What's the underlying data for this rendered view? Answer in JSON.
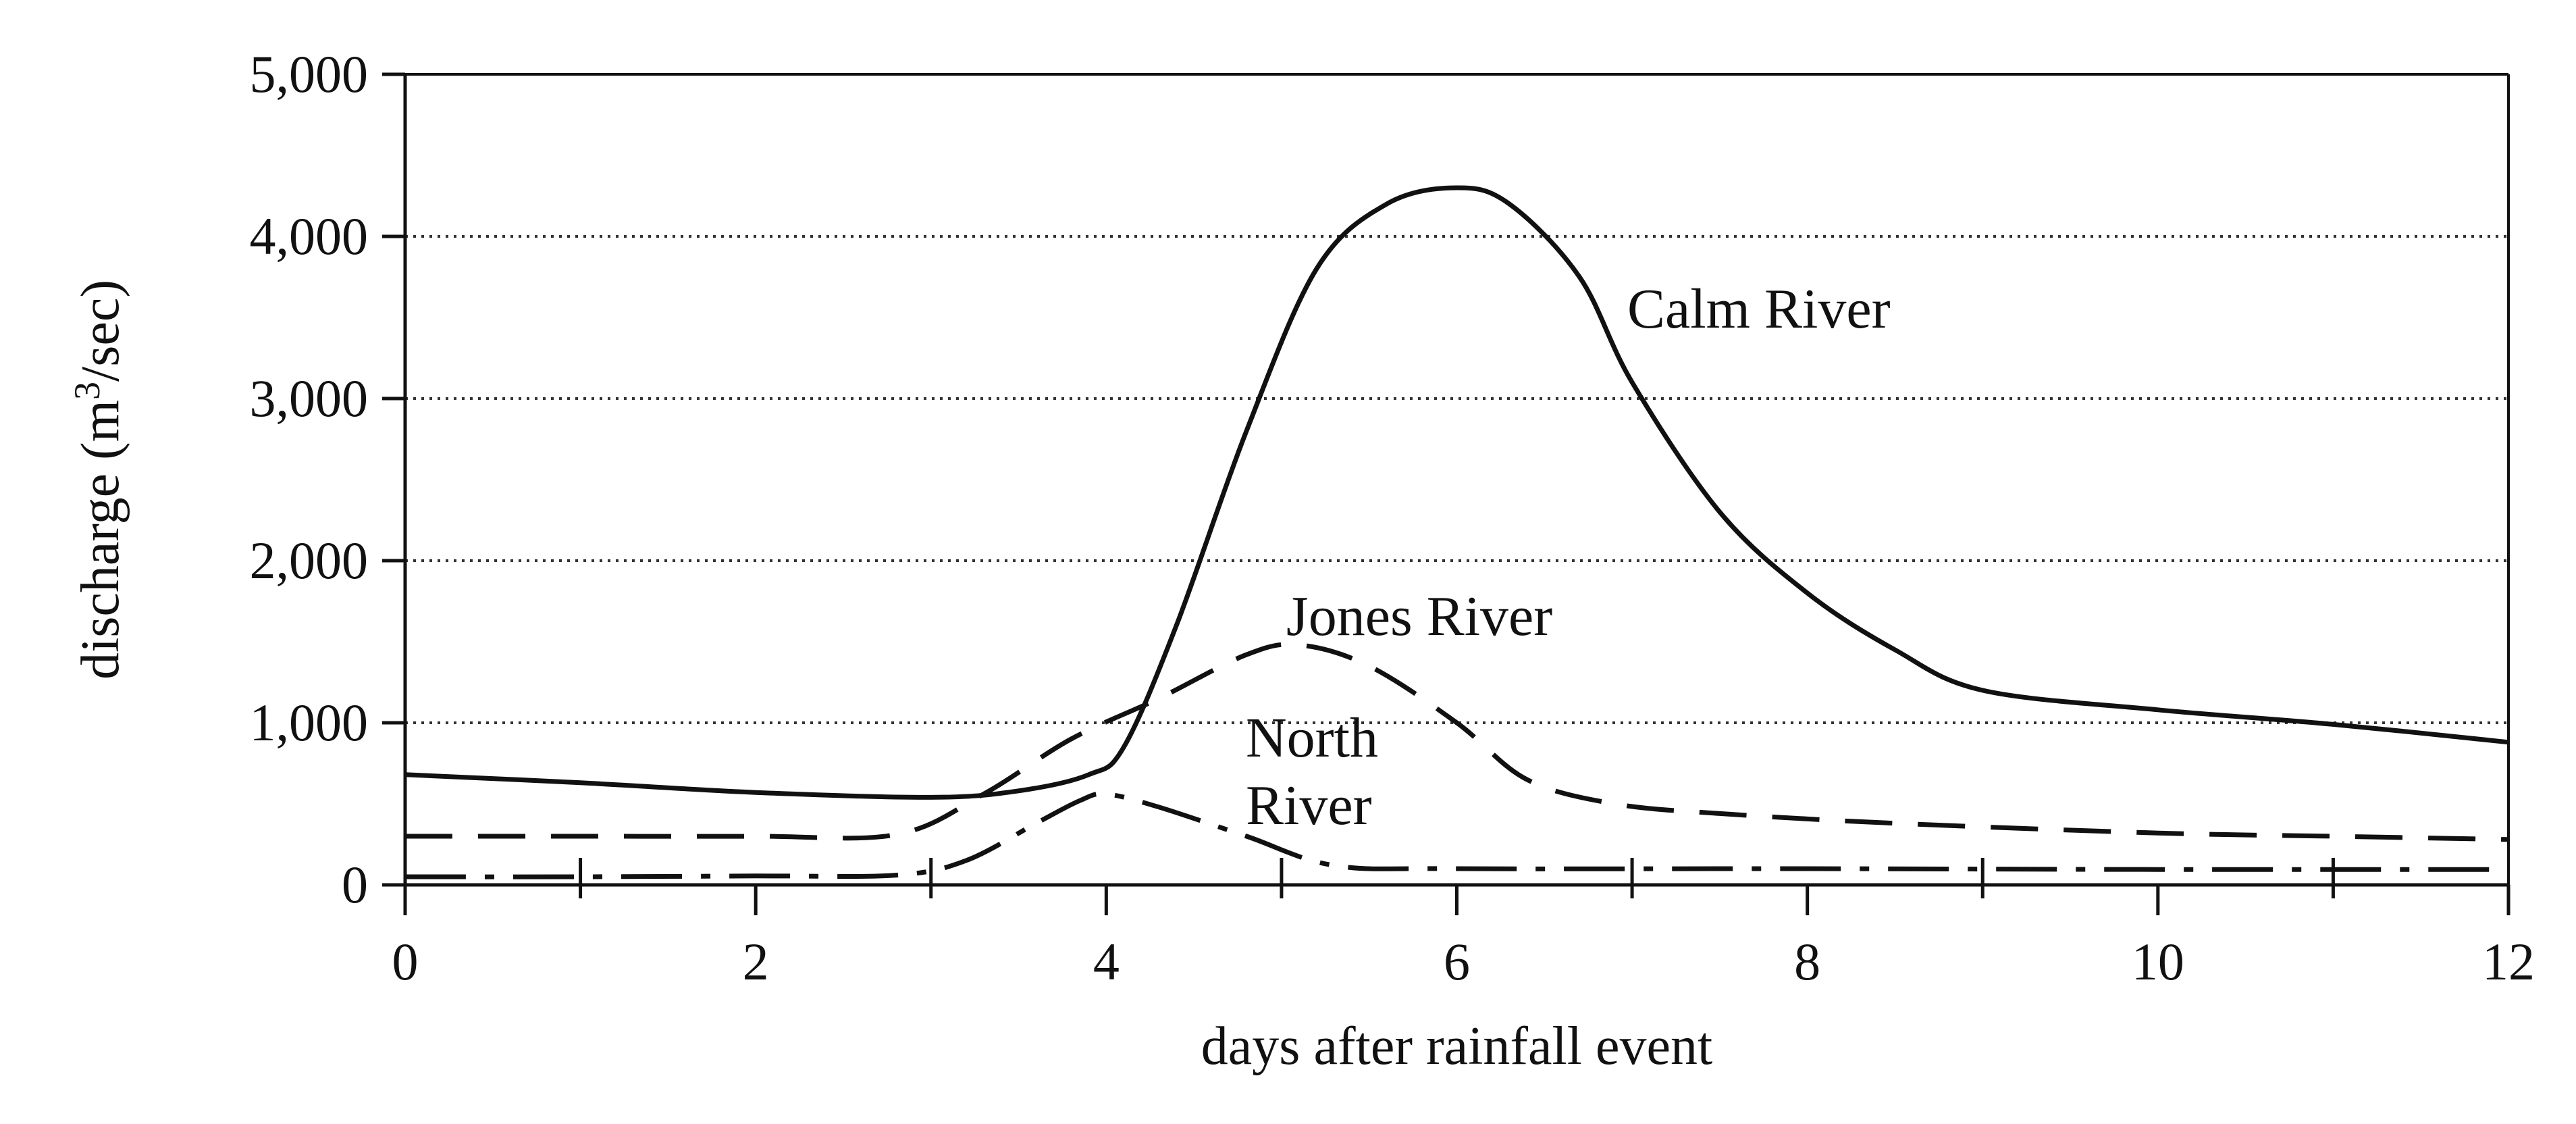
{
  "chart_data": {
    "type": "line",
    "title": "",
    "xlabel": "days after rainfall event",
    "ylabel_main": "discharge (m",
    "ylabel_sup": "3",
    "ylabel_end": "/sec)",
    "xlim": [
      0,
      12
    ],
    "ylim": [
      0,
      5000
    ],
    "x_ticks": [
      0,
      2,
      4,
      6,
      8,
      10,
      12
    ],
    "x_minor_ticks": [
      1,
      3,
      5,
      7,
      9,
      11
    ],
    "x_tick_labels": [
      "0",
      "2",
      "4",
      "6",
      "8",
      "10",
      "12"
    ],
    "y_ticks": [
      0,
      1000,
      2000,
      3000,
      4000,
      5000
    ],
    "y_tick_labels": [
      "0",
      "1,000",
      "2,000",
      "3,000",
      "4,000",
      "5,000"
    ],
    "grid": "horizontal dotted",
    "series": [
      {
        "name": "Calm River",
        "style": "solid",
        "x": [
          0,
          1,
          2,
          3,
          3.5,
          3.9,
          4.1,
          4.4,
          4.8,
          5.2,
          5.6,
          6.0,
          6.3,
          6.7,
          7.0,
          7.5,
          8.0,
          8.5,
          9.0,
          10.0,
          11.0,
          12.0
        ],
        "y": [
          680,
          630,
          570,
          540,
          580,
          680,
          850,
          1600,
          2800,
          3800,
          4200,
          4300,
          4200,
          3750,
          3100,
          2300,
          1800,
          1450,
          1200,
          1080,
          990,
          880
        ]
      },
      {
        "name": "Jones River",
        "style": "dashed",
        "x": [
          0,
          1,
          2,
          2.8,
          3.3,
          3.8,
          4.3,
          4.8,
          5.1,
          5.5,
          6.0,
          6.4,
          6.9,
          7.5,
          8.5,
          10.0,
          11.0,
          12.0
        ],
        "y": [
          300,
          300,
          300,
          310,
          560,
          900,
          1150,
          1420,
          1480,
          1350,
          1000,
          650,
          500,
          440,
          380,
          320,
          300,
          280
        ]
      },
      {
        "name": "North River",
        "style": "dash-dot",
        "x": [
          0,
          1,
          2,
          2.8,
          3.2,
          3.6,
          3.85,
          4.0,
          4.3,
          4.8,
          5.3,
          6.0,
          8.0,
          10.0,
          12.0
        ],
        "y": [
          50,
          50,
          55,
          60,
          150,
          380,
          520,
          560,
          480,
          300,
          120,
          100,
          100,
          95,
          95
        ]
      }
    ],
    "labels": {
      "calm": "Calm River",
      "jones": "Jones River",
      "north_line1": "North",
      "north_line2": "River"
    }
  }
}
